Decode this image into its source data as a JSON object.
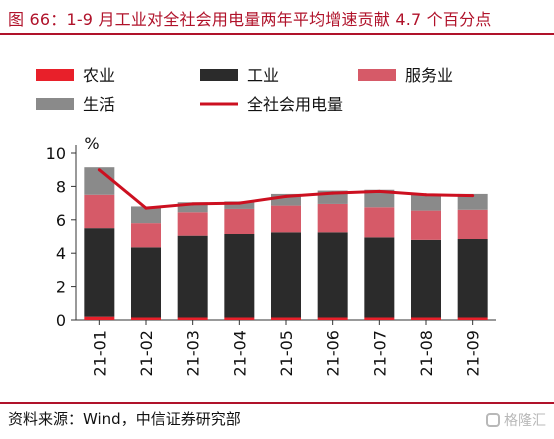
{
  "title": "图 66：1-9 月工业对全社会用电量两年平均增速贡献 4.7 个百分点",
  "source": "资料来源：Wind，中信证券研究部",
  "watermark": "格隆汇",
  "chart_data": {
    "type": "bar",
    "stacked": true,
    "unit_label": "%",
    "ylim": [
      0,
      10
    ],
    "yticks": [
      "0",
      "2",
      "4",
      "6",
      "8",
      "10"
    ],
    "categories": [
      "21-01",
      "21-02",
      "21-03",
      "21-04",
      "21-05",
      "21-06",
      "21-07",
      "21-08",
      "21-09"
    ],
    "legend_position": "top",
    "series": [
      {
        "name": "农业",
        "type": "bar",
        "color": "#e8202a",
        "values": [
          0.2,
          0.15,
          0.15,
          0.15,
          0.15,
          0.15,
          0.15,
          0.15,
          0.15
        ]
      },
      {
        "name": "工业",
        "type": "bar",
        "color": "#2b2b2b",
        "values": [
          5.3,
          4.2,
          4.9,
          5.0,
          5.1,
          5.1,
          4.8,
          4.65,
          4.7
        ]
      },
      {
        "name": "服务业",
        "type": "bar",
        "color": "#d65a68",
        "values": [
          2.0,
          1.45,
          1.4,
          1.5,
          1.6,
          1.7,
          1.8,
          1.75,
          1.75
        ]
      },
      {
        "name": "生活",
        "type": "bar",
        "color": "#8a8a8a",
        "values": [
          1.65,
          1.0,
          0.6,
          0.45,
          0.7,
          0.8,
          1.05,
          0.95,
          0.95
        ]
      },
      {
        "name": "全社会用电量",
        "type": "line",
        "color": "#cc1020",
        "values": [
          9.0,
          6.7,
          6.95,
          7.0,
          7.4,
          7.6,
          7.7,
          7.5,
          7.45
        ]
      }
    ]
  }
}
